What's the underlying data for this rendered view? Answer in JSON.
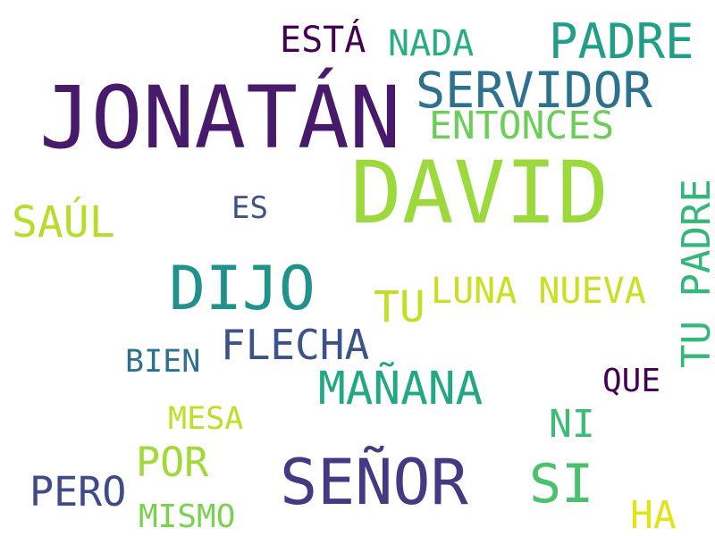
{
  "words": [
    {
      "text": "JONATÁN",
      "color": "#481a6c"
    },
    {
      "text": "DAVID",
      "color": "#9bd93c"
    },
    {
      "text": "SEÑOR",
      "color": "#443a83"
    },
    {
      "text": "DIJO",
      "color": "#21918c"
    },
    {
      "text": "SERVIDOR",
      "color": "#2c728e"
    },
    {
      "text": "PADRE",
      "color": "#1f9e89"
    },
    {
      "text": "SI",
      "color": "#4ac16d"
    },
    {
      "text": "ENTONCES",
      "color": "#6ccd5a"
    },
    {
      "text": "SAÚL",
      "color": "#b5de2b"
    },
    {
      "text": "MAÑANA",
      "color": "#22a884"
    },
    {
      "text": "FLECHA",
      "color": "#3b528b"
    },
    {
      "text": "TU PADRE",
      "color": "#35b779"
    },
    {
      "text": "PERO",
      "color": "#3e4a89"
    },
    {
      "text": "ESTÁ",
      "color": "#440154"
    },
    {
      "text": "TU",
      "color": "#c2df23"
    },
    {
      "text": "NADA",
      "color": "#29af7f"
    },
    {
      "text": "LUNA NUEVA",
      "color": "#c8e020"
    },
    {
      "text": "POR",
      "color": "#a0da39"
    },
    {
      "text": "NI",
      "color": "#3dbc74"
    },
    {
      "text": "HA",
      "color": "#e2e418"
    },
    {
      "text": "QUE",
      "color": "#440154"
    },
    {
      "text": "BIEN",
      "color": "#2c728e"
    },
    {
      "text": "MESA",
      "color": "#bddf26"
    },
    {
      "text": "MISMO",
      "color": "#7ad151"
    },
    {
      "text": "ES",
      "color": "#3b528b"
    }
  ]
}
